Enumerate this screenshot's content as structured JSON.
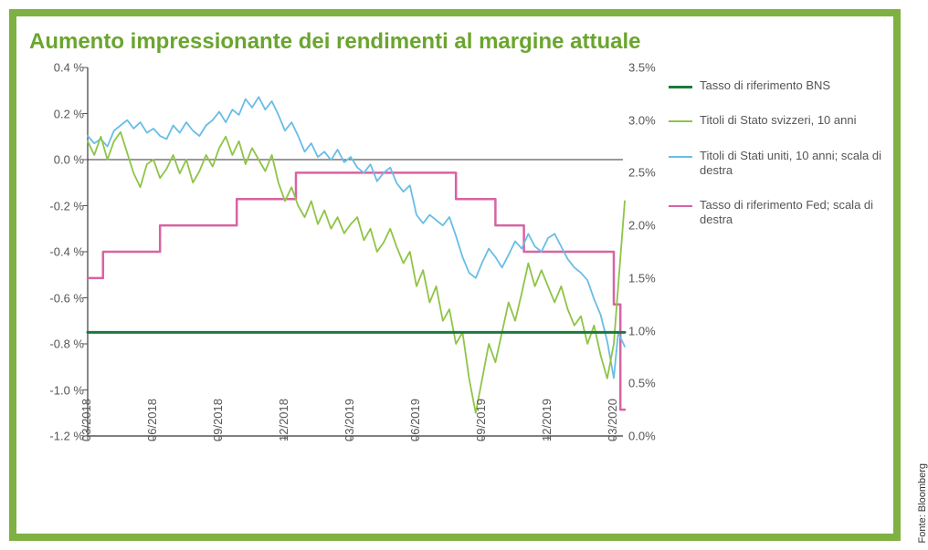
{
  "border_color": "#7fb142",
  "title": {
    "text": "Aumento impressionante dei rendimenti al margine attuale",
    "color": "#6aa52e",
    "fontsize": 24
  },
  "source_label": "Fonte: Bloomberg",
  "chart": {
    "type": "line-dual-axis",
    "background_color": "#ffffff",
    "axis_color": "#555555",
    "axis_width": 1.4,
    "zero_line_color": "#333333",
    "y_left": {
      "min": -1.2,
      "max": 0.4,
      "step": 0.2,
      "labels": [
        "0.4 %",
        "0.2 %",
        "0.0 %",
        "-0.2 %",
        "-0.4 %",
        "-0.6 %",
        "-0.8 %",
        "-1.0 %",
        "-1.2 %"
      ]
    },
    "y_right": {
      "min": 0.0,
      "max": 3.5,
      "step": 0.5,
      "labels": [
        "3.5%",
        "3.0%",
        "2.5%",
        "2.0%",
        "1.5%",
        "1.0%",
        "0.5%",
        "0.0%"
      ]
    },
    "x": {
      "min": 0,
      "max": 24,
      "ticks": [
        0,
        3,
        6,
        9,
        12,
        15,
        18,
        21,
        24
      ],
      "labels": [
        "03/2018",
        "06/2018",
        "09/2018",
        "12/2018",
        "03/2019",
        "06/2019",
        "09/2019",
        "12/2019",
        "03/2020"
      ]
    },
    "legend": [
      {
        "label": "Tasso di riferimento BNS",
        "color": "#1b7a3a",
        "width": 3
      },
      {
        "label": "Titoli di Stato svizzeri, 10 anni",
        "color": "#8fc447",
        "width": 2
      },
      {
        "label": "Titoli di Stati uniti, 10 anni; scala di destra",
        "color": "#69bde6",
        "width": 2
      },
      {
        "label": "Tasso di riferimento Fed; scala di destra",
        "color": "#d863a3",
        "width": 2.5
      }
    ],
    "series": {
      "bns": {
        "axis": "left",
        "color": "#1b7a3a",
        "width": 3,
        "style": "line",
        "points": [
          [
            0,
            -0.75
          ],
          [
            24.5,
            -0.75
          ]
        ]
      },
      "fed": {
        "axis": "right",
        "color": "#d863a3",
        "width": 2.5,
        "style": "step",
        "points": [
          [
            0,
            1.5
          ],
          [
            0.7,
            1.5
          ],
          [
            0.7,
            1.75
          ],
          [
            3.3,
            1.75
          ],
          [
            3.3,
            2.0
          ],
          [
            6.8,
            2.0
          ],
          [
            6.8,
            2.25
          ],
          [
            9.5,
            2.25
          ],
          [
            9.5,
            2.5
          ],
          [
            16.8,
            2.5
          ],
          [
            16.8,
            2.25
          ],
          [
            18.6,
            2.25
          ],
          [
            18.6,
            2.0
          ],
          [
            19.9,
            2.0
          ],
          [
            19.9,
            1.75
          ],
          [
            24.0,
            1.75
          ],
          [
            24.0,
            1.25
          ],
          [
            24.3,
            1.25
          ],
          [
            24.3,
            0.25
          ],
          [
            24.5,
            0.25
          ]
        ]
      },
      "ch10y": {
        "axis": "left",
        "color": "#8fc447",
        "width": 1.8,
        "style": "line",
        "points": [
          [
            0,
            0.08
          ],
          [
            0.3,
            0.02
          ],
          [
            0.6,
            0.1
          ],
          [
            0.9,
            0.0
          ],
          [
            1.2,
            0.08
          ],
          [
            1.5,
            0.12
          ],
          [
            1.8,
            0.03
          ],
          [
            2.1,
            -0.06
          ],
          [
            2.4,
            -0.12
          ],
          [
            2.7,
            -0.02
          ],
          [
            3.0,
            0.0
          ],
          [
            3.3,
            -0.08
          ],
          [
            3.6,
            -0.04
          ],
          [
            3.9,
            0.02
          ],
          [
            4.2,
            -0.06
          ],
          [
            4.5,
            0.0
          ],
          [
            4.8,
            -0.1
          ],
          [
            5.1,
            -0.05
          ],
          [
            5.4,
            0.02
          ],
          [
            5.7,
            -0.03
          ],
          [
            6.0,
            0.05
          ],
          [
            6.3,
            0.1
          ],
          [
            6.6,
            0.02
          ],
          [
            6.9,
            0.08
          ],
          [
            7.2,
            -0.02
          ],
          [
            7.5,
            0.05
          ],
          [
            7.8,
            0.0
          ],
          [
            8.1,
            -0.05
          ],
          [
            8.4,
            0.02
          ],
          [
            8.7,
            -0.1
          ],
          [
            9.0,
            -0.18
          ],
          [
            9.3,
            -0.12
          ],
          [
            9.6,
            -0.2
          ],
          [
            9.9,
            -0.25
          ],
          [
            10.2,
            -0.18
          ],
          [
            10.5,
            -0.28
          ],
          [
            10.8,
            -0.22
          ],
          [
            11.1,
            -0.3
          ],
          [
            11.4,
            -0.25
          ],
          [
            11.7,
            -0.32
          ],
          [
            12.0,
            -0.28
          ],
          [
            12.3,
            -0.25
          ],
          [
            12.6,
            -0.35
          ],
          [
            12.9,
            -0.3
          ],
          [
            13.2,
            -0.4
          ],
          [
            13.5,
            -0.36
          ],
          [
            13.8,
            -0.3
          ],
          [
            14.1,
            -0.38
          ],
          [
            14.4,
            -0.45
          ],
          [
            14.7,
            -0.4
          ],
          [
            15.0,
            -0.55
          ],
          [
            15.3,
            -0.48
          ],
          [
            15.6,
            -0.62
          ],
          [
            15.9,
            -0.55
          ],
          [
            16.2,
            -0.7
          ],
          [
            16.5,
            -0.65
          ],
          [
            16.8,
            -0.8
          ],
          [
            17.1,
            -0.75
          ],
          [
            17.4,
            -0.95
          ],
          [
            17.7,
            -1.1
          ],
          [
            18.0,
            -0.95
          ],
          [
            18.3,
            -0.8
          ],
          [
            18.6,
            -0.88
          ],
          [
            18.9,
            -0.75
          ],
          [
            19.2,
            -0.62
          ],
          [
            19.5,
            -0.7
          ],
          [
            19.8,
            -0.58
          ],
          [
            20.1,
            -0.45
          ],
          [
            20.4,
            -0.55
          ],
          [
            20.7,
            -0.48
          ],
          [
            21.0,
            -0.55
          ],
          [
            21.3,
            -0.62
          ],
          [
            21.6,
            -0.55
          ],
          [
            21.9,
            -0.65
          ],
          [
            22.2,
            -0.72
          ],
          [
            22.5,
            -0.68
          ],
          [
            22.8,
            -0.8
          ],
          [
            23.1,
            -0.72
          ],
          [
            23.4,
            -0.85
          ],
          [
            23.7,
            -0.95
          ],
          [
            24.0,
            -0.8
          ],
          [
            24.2,
            -0.55
          ],
          [
            24.5,
            -0.18
          ]
        ]
      },
      "us10y": {
        "axis": "right",
        "color": "#69bde6",
        "width": 1.8,
        "style": "line",
        "points": [
          [
            0,
            2.85
          ],
          [
            0.3,
            2.78
          ],
          [
            0.6,
            2.82
          ],
          [
            0.9,
            2.75
          ],
          [
            1.2,
            2.9
          ],
          [
            1.5,
            2.95
          ],
          [
            1.8,
            3.0
          ],
          [
            2.1,
            2.92
          ],
          [
            2.4,
            2.98
          ],
          [
            2.7,
            2.88
          ],
          [
            3.0,
            2.92
          ],
          [
            3.3,
            2.85
          ],
          [
            3.6,
            2.82
          ],
          [
            3.9,
            2.95
          ],
          [
            4.2,
            2.88
          ],
          [
            4.5,
            2.98
          ],
          [
            4.8,
            2.9
          ],
          [
            5.1,
            2.85
          ],
          [
            5.4,
            2.95
          ],
          [
            5.7,
            3.0
          ],
          [
            6.0,
            3.08
          ],
          [
            6.3,
            2.98
          ],
          [
            6.6,
            3.1
          ],
          [
            6.9,
            3.05
          ],
          [
            7.2,
            3.2
          ],
          [
            7.5,
            3.12
          ],
          [
            7.8,
            3.22
          ],
          [
            8.1,
            3.1
          ],
          [
            8.4,
            3.18
          ],
          [
            8.7,
            3.05
          ],
          [
            9.0,
            2.9
          ],
          [
            9.3,
            2.98
          ],
          [
            9.6,
            2.85
          ],
          [
            9.9,
            2.7
          ],
          [
            10.2,
            2.78
          ],
          [
            10.5,
            2.65
          ],
          [
            10.8,
            2.7
          ],
          [
            11.1,
            2.62
          ],
          [
            11.4,
            2.72
          ],
          [
            11.7,
            2.6
          ],
          [
            12.0,
            2.65
          ],
          [
            12.3,
            2.55
          ],
          [
            12.6,
            2.5
          ],
          [
            12.9,
            2.58
          ],
          [
            13.2,
            2.42
          ],
          [
            13.5,
            2.5
          ],
          [
            13.8,
            2.55
          ],
          [
            14.1,
            2.4
          ],
          [
            14.4,
            2.32
          ],
          [
            14.7,
            2.38
          ],
          [
            15.0,
            2.1
          ],
          [
            15.3,
            2.02
          ],
          [
            15.6,
            2.1
          ],
          [
            15.9,
            2.05
          ],
          [
            16.2,
            2.0
          ],
          [
            16.5,
            2.08
          ],
          [
            16.8,
            1.9
          ],
          [
            17.1,
            1.7
          ],
          [
            17.4,
            1.55
          ],
          [
            17.7,
            1.5
          ],
          [
            18.0,
            1.65
          ],
          [
            18.3,
            1.78
          ],
          [
            18.6,
            1.7
          ],
          [
            18.9,
            1.6
          ],
          [
            19.2,
            1.72
          ],
          [
            19.5,
            1.85
          ],
          [
            19.8,
            1.78
          ],
          [
            20.1,
            1.92
          ],
          [
            20.4,
            1.8
          ],
          [
            20.7,
            1.75
          ],
          [
            21.0,
            1.88
          ],
          [
            21.3,
            1.92
          ],
          [
            21.6,
            1.8
          ],
          [
            21.9,
            1.68
          ],
          [
            22.2,
            1.6
          ],
          [
            22.5,
            1.55
          ],
          [
            22.8,
            1.48
          ],
          [
            23.1,
            1.3
          ],
          [
            23.4,
            1.15
          ],
          [
            23.7,
            0.9
          ],
          [
            24.0,
            0.55
          ],
          [
            24.2,
            0.98
          ],
          [
            24.5,
            0.85
          ]
        ]
      }
    }
  }
}
